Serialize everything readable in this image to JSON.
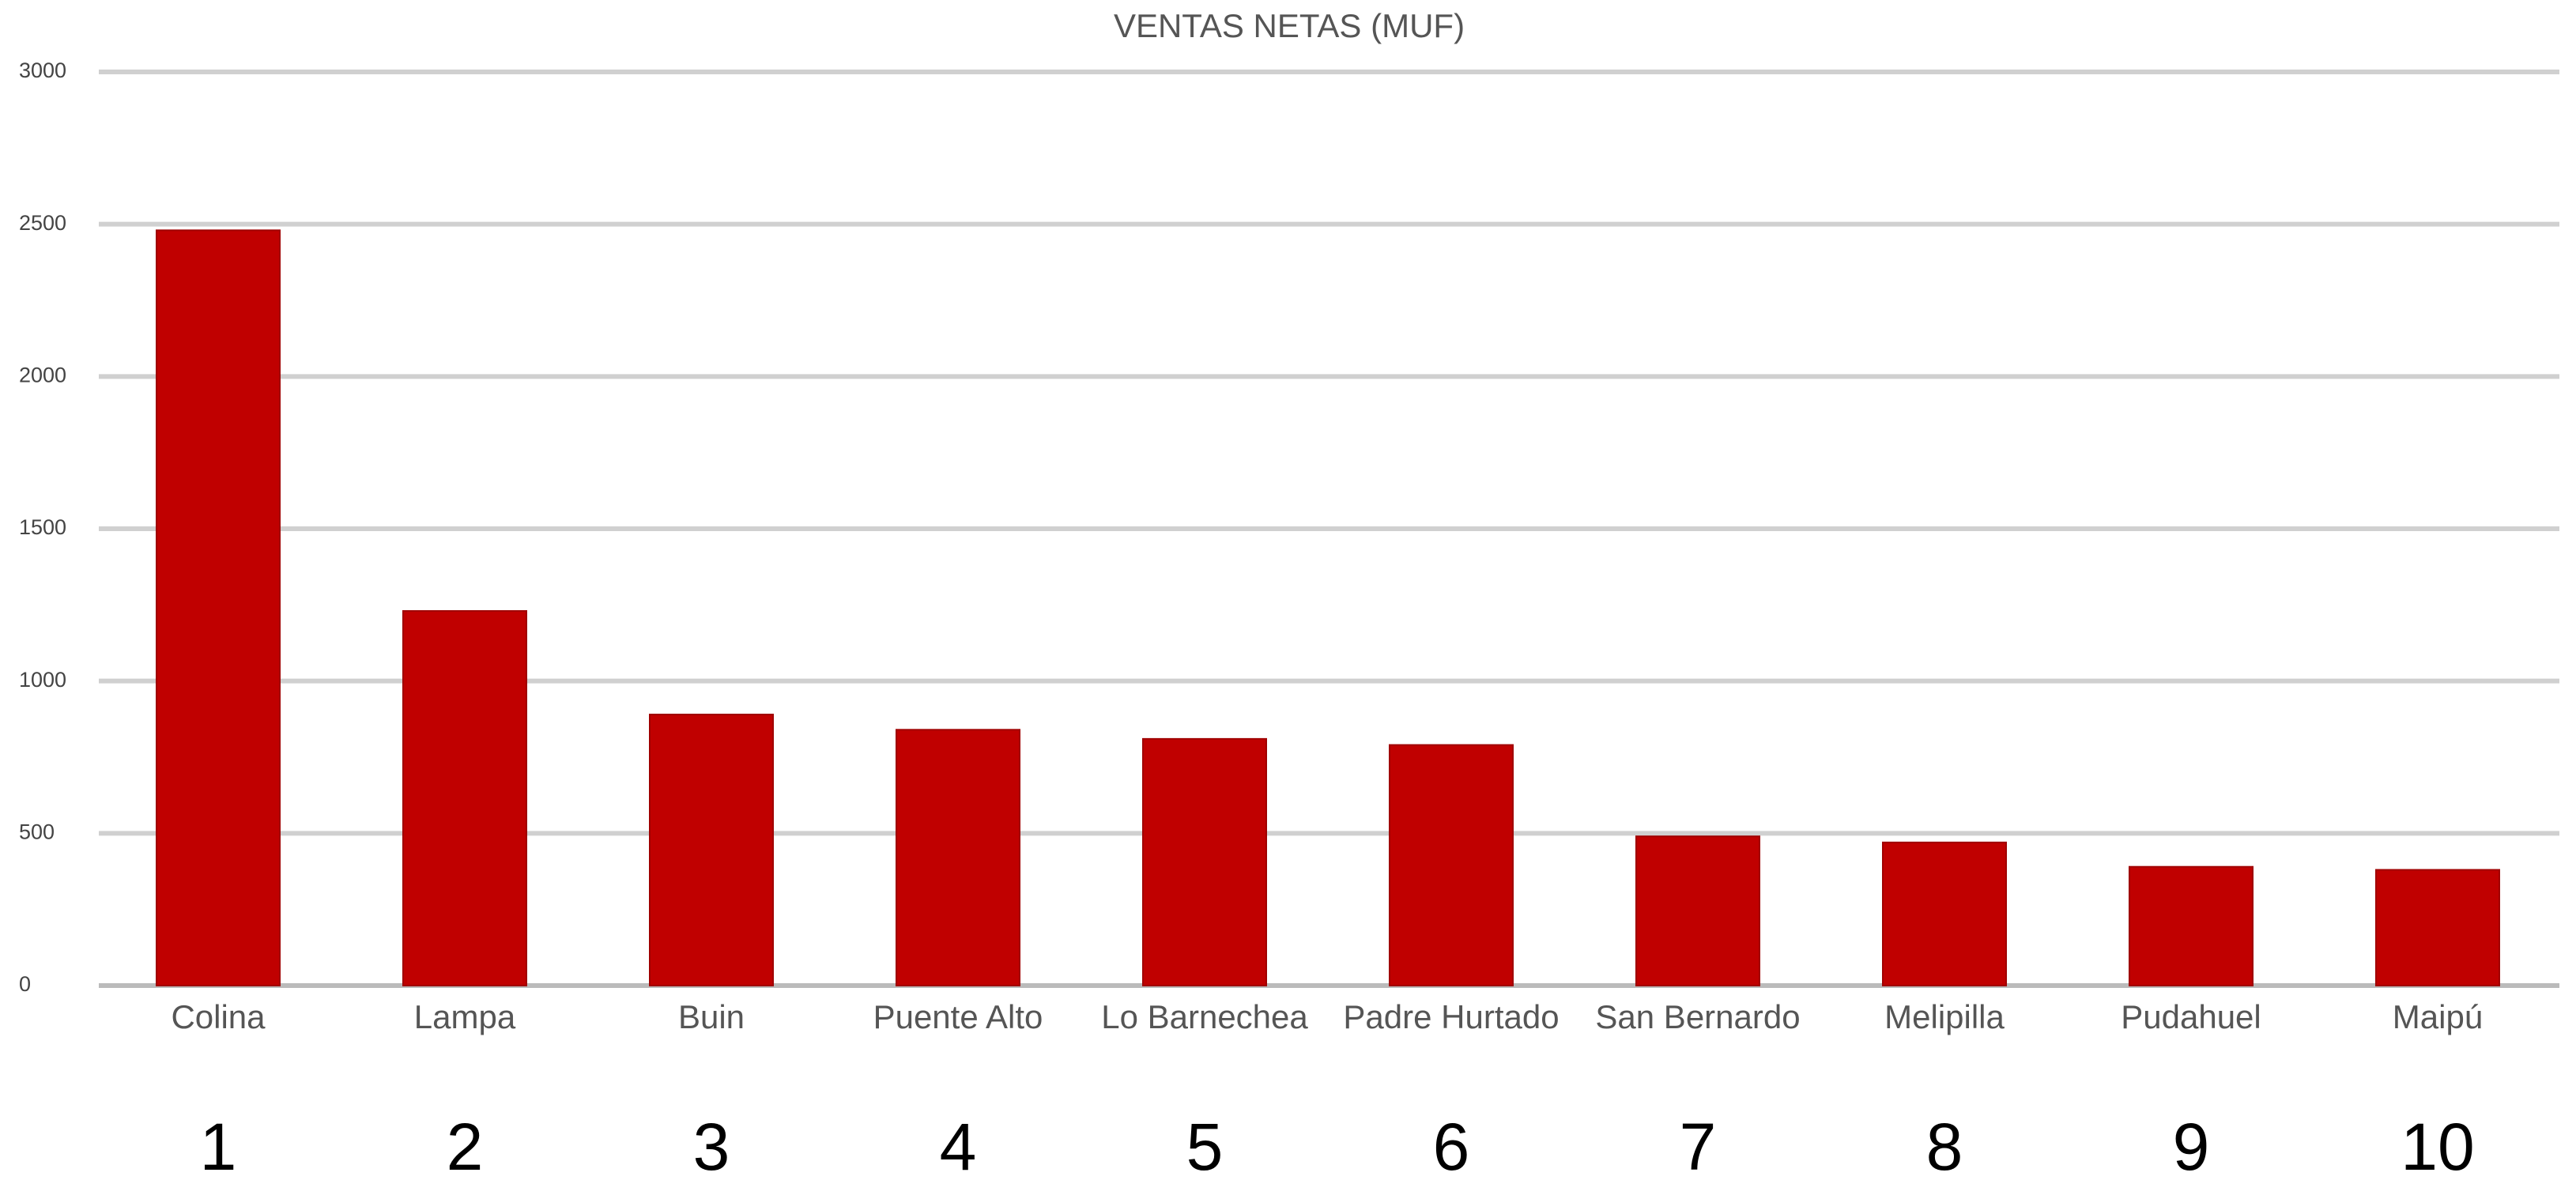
{
  "chart_data": {
    "type": "bar",
    "title": "VENTAS NETAS  (MUF)",
    "categories": [
      "Colina",
      "Lampa",
      "Buin",
      "Puente Alto",
      "Lo Barnechea",
      "Padre Hurtado",
      "San Bernardo",
      "Melipilla",
      "Pudahuel",
      "Maipú"
    ],
    "values": [
      2480,
      1230,
      890,
      840,
      810,
      790,
      490,
      470,
      390,
      380
    ],
    "ranks": [
      1,
      2,
      3,
      4,
      5,
      6,
      7,
      8,
      9,
      10
    ],
    "color": "#c00000",
    "ylim": [
      0,
      3000
    ],
    "yticks": [
      0,
      500,
      1000,
      1500,
      2000,
      2500,
      3000
    ],
    "grid": true
  }
}
